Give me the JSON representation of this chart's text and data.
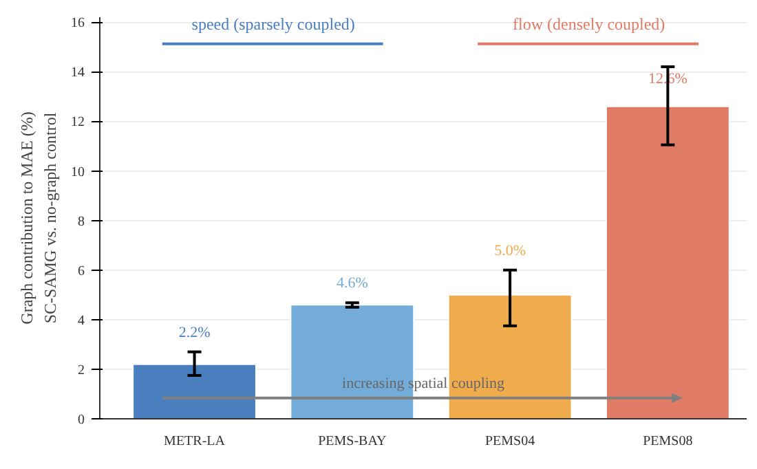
{
  "chart_data": {
    "type": "bar",
    "ylabel": "Graph contribution to MAE (%)\nSC-SAMG vs. no-graph control",
    "categories": [
      "METR-LA",
      "PEMS-BAY",
      "PEMS04",
      "PEMS08"
    ],
    "values": [
      2.2,
      4.6,
      5.0,
      12.6
    ],
    "colors": [
      "#4a7fbf",
      "#74acd9",
      "#f0ac4c",
      "#e07b65"
    ],
    "errors": [
      [
        1.75,
        2.7
      ],
      [
        4.5,
        4.68
      ],
      [
        3.75,
        6.0
      ],
      [
        11.05,
        14.2
      ]
    ],
    "value_labels": [
      "2.2%",
      "4.6%",
      "5.0%",
      "12.6%"
    ],
    "ylim": [
      0,
      16.2
    ],
    "yticks": [
      0,
      2,
      4,
      6,
      8,
      10,
      12,
      14,
      16
    ],
    "grid": "y",
    "annotations": [
      "speed (sparsely coupled)",
      "flow (densely coupled)",
      "increasing spatial coupling"
    ]
  }
}
